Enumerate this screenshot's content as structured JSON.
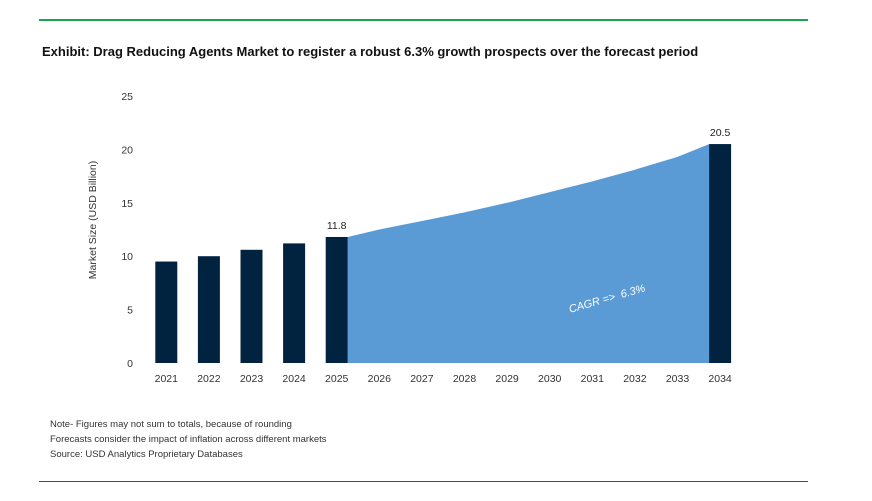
{
  "title": "Exhibit: Drag Reducing Agents Market to register a robust 6.3% growth prospects over the forecast period",
  "notes": [
    "Note- Figures may not sum to totals, because of rounding",
    "Forecasts consider the impact of inflation across different markets",
    "Source: USD Analytics Proprietary Databases"
  ],
  "colors": {
    "bar": "#012340",
    "area": "#5b9bd5",
    "rule_top": "#1fa352"
  },
  "chart_data": {
    "type": "bar",
    "categories": [
      "2021",
      "2022",
      "2023",
      "2024",
      "2025",
      "2026",
      "2027",
      "2028",
      "2029",
      "2030",
      "2031",
      "2032",
      "2033",
      "2034"
    ],
    "series": [
      {
        "values": [
          9.5,
          10.0,
          10.6,
          11.2,
          11.8,
          null,
          null,
          null,
          null,
          null,
          null,
          null,
          null,
          20.5
        ]
      }
    ],
    "forecast_area": {
      "x": [
        "2025",
        "2026",
        "2027",
        "2028",
        "2029",
        "2030",
        "2031",
        "2032",
        "2033",
        "2034"
      ],
      "values": [
        11.8,
        12.5,
        13.3,
        14.1,
        15.0,
        16.0,
        17.0,
        18.1,
        19.3,
        20.5
      ]
    },
    "data_labels": [
      {
        "category": "2025",
        "text": "11.8"
      },
      {
        "category": "2034",
        "text": "20.5"
      }
    ],
    "annotation": "CAGR =>  6.3%",
    "ylabel": "Market Size (USD Billion)",
    "xlabel": "",
    "ylim": [
      0,
      25
    ],
    "yticks": [
      0,
      5,
      10,
      15,
      20,
      25
    ],
    "grid": false
  }
}
